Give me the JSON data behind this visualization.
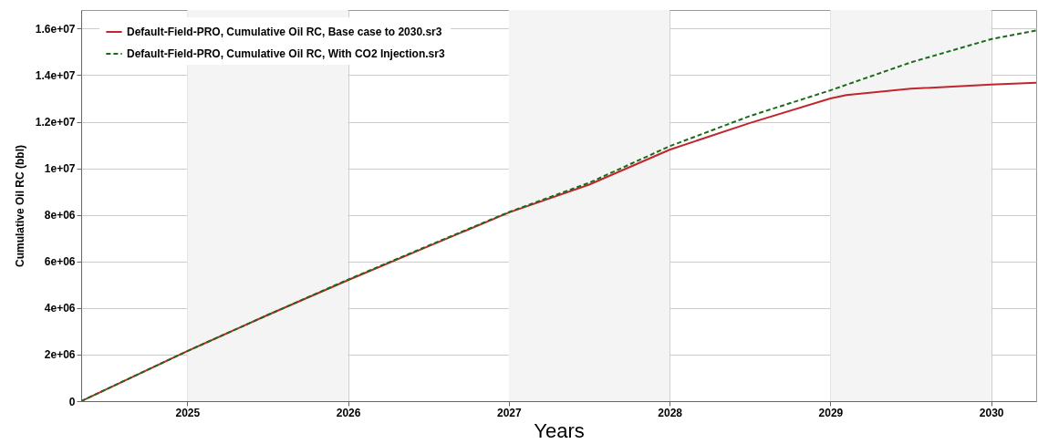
{
  "chart_data": {
    "type": "line",
    "xlabel": "Years",
    "ylabel": "Cumulative Oil RC (bbl)",
    "xlim": [
      2024.34,
      2030.28
    ],
    "xticks": [
      2025,
      2026,
      2027,
      2028,
      2029,
      2030
    ],
    "ylim": [
      0,
      16800000
    ],
    "yticks": [
      0,
      {
        "value": 2000000,
        "label": "2e+06"
      },
      {
        "value": 4000000,
        "label": "4e+06"
      },
      {
        "value": 6000000,
        "label": "6e+06"
      },
      {
        "value": 8000000,
        "label": "8e+06"
      },
      {
        "value": 10000000,
        "label": "1e+07"
      },
      {
        "value": 12000000,
        "label": "1.2e+07"
      },
      {
        "value": 14000000,
        "label": "1.4e+07"
      },
      {
        "value": 16000000,
        "label": "1.6e+07"
      }
    ],
    "grid": true,
    "legend": "top left",
    "marker": "none",
    "bands": [
      {
        "axis": "x",
        "from": 2025,
        "to": 2026,
        "color": "#f4f4f4"
      },
      {
        "axis": "x",
        "from": 2027,
        "to": 2028,
        "color": "#f4f4f4"
      },
      {
        "axis": "x",
        "from": 2029,
        "to": 2030,
        "color": "#f4f4f4"
      }
    ],
    "series": [
      {
        "name": "Default-Field-PRO, Cumulative Oil RC, Base case to 2030.sr3",
        "color": "#c0272d",
        "line_style": "solid",
        "x": [
          2024.34,
          2025,
          2025.5,
          2026,
          2026.5,
          2027,
          2027.5,
          2028,
          2028.5,
          2029,
          2029.1,
          2029.5,
          2030,
          2030.28
        ],
        "values": [
          0,
          2150000,
          3700000,
          5200000,
          6650000,
          8100000,
          9300000,
          10800000,
          11950000,
          13000000,
          13150000,
          13420000,
          13600000,
          13680000
        ]
      },
      {
        "name": "Default-Field-PRO, Cumulative Oil RC, With CO2 Injection.sr3",
        "color": "#1a6b1a",
        "line_style": "dashed",
        "x": [
          2024.34,
          2025,
          2025.5,
          2026,
          2026.5,
          2027,
          2027.5,
          2028,
          2028.5,
          2029,
          2029.5,
          2030,
          2030.28
        ],
        "values": [
          0,
          2150000,
          3700000,
          5220000,
          6680000,
          8120000,
          9380000,
          10950000,
          12250000,
          13350000,
          14550000,
          15550000,
          15920000
        ]
      }
    ]
  }
}
